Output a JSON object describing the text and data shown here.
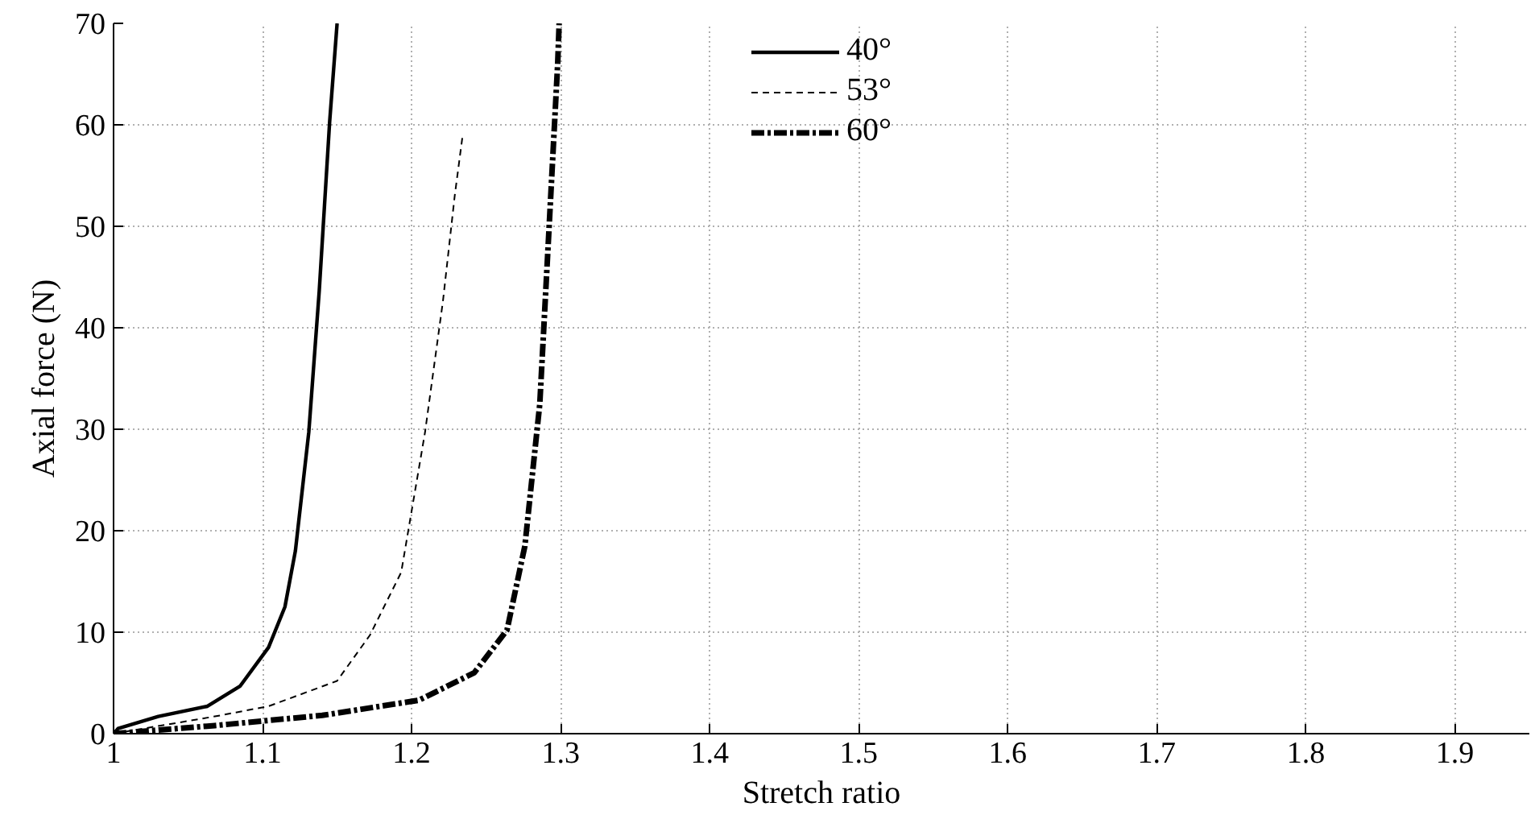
{
  "chart_data": {
    "type": "line",
    "xlabel": "Stretch ratio",
    "ylabel": "Axial force (N)",
    "xlim": [
      1,
      1.95
    ],
    "ylim": [
      0,
      70
    ],
    "xticks": [
      1,
      1.1,
      1.2,
      1.3,
      1.4,
      1.5,
      1.6,
      1.7,
      1.8,
      1.9
    ],
    "yticks": [
      0,
      10,
      20,
      30,
      40,
      50,
      60,
      70
    ],
    "grid": true,
    "legend": "top",
    "marker": "none",
    "series": [
      {
        "name": "40°",
        "color": "#000000",
        "line_style": "solid",
        "x": [
          1.0,
          1.003,
          1.03,
          1.063,
          1.085,
          1.104,
          1.115,
          1.122,
          1.131,
          1.138,
          1.145,
          1.15
        ],
        "values": [
          0,
          0.5,
          1.7,
          2.7,
          4.7,
          8.5,
          12.5,
          18,
          29.7,
          43.6,
          60.3,
          70
        ]
      },
      {
        "name": "53°",
        "color": "#000000",
        "line_style": "dashed",
        "x": [
          1.0,
          1.068,
          1.104,
          1.15,
          1.172,
          1.193,
          1.209,
          1.221,
          1.229,
          1.234
        ],
        "values": [
          0,
          1.7,
          2.7,
          5.2,
          9.7,
          15.9,
          29.7,
          42.6,
          53.1,
          58.7
        ]
      },
      {
        "name": "60°",
        "color": "#000000",
        "line_style": "dashdot",
        "x": [
          1.0,
          1.068,
          1.14,
          1.205,
          1.242,
          1.264,
          1.276,
          1.286,
          1.292,
          1.298,
          1.299
        ],
        "values": [
          0,
          0.8,
          1.8,
          3.3,
          6.0,
          10.2,
          18.5,
          32.5,
          49.2,
          66,
          70
        ]
      }
    ]
  }
}
